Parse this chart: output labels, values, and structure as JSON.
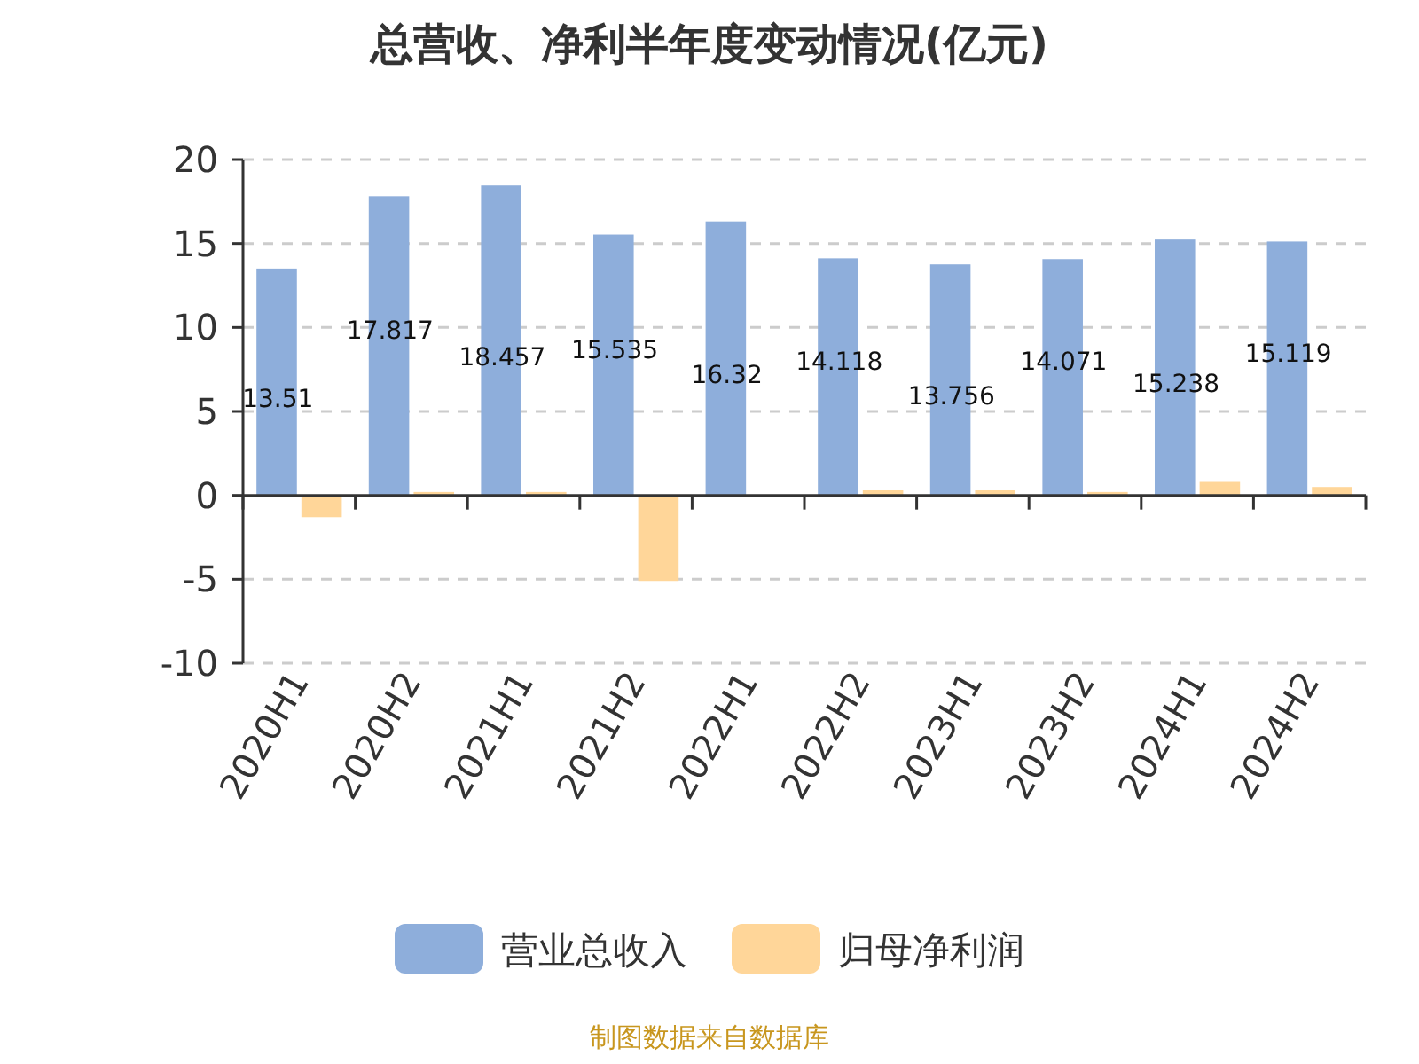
{
  "chart_data": {
    "type": "bar",
    "title": "总营收、净利半年度变动情况(亿元)",
    "categories": [
      "2020H1",
      "2020H2",
      "2021H1",
      "2021H2",
      "2022H1",
      "2022H2",
      "2023H1",
      "2023H2",
      "2024H1",
      "2024H2"
    ],
    "series": [
      {
        "name": "营业总收入",
        "color": "#8eaedb",
        "values": [
          13.51,
          17.817,
          18.457,
          15.535,
          16.32,
          14.118,
          13.756,
          14.071,
          15.238,
          15.119
        ],
        "value_labels": [
          "13.51",
          "17.817",
          "18.457",
          "15.535",
          "16.32",
          "14.118",
          "13.756",
          "14.071",
          "15.238",
          "15.119"
        ]
      },
      {
        "name": "归母净利润",
        "color": "#ffd699",
        "values": [
          -1.3,
          0.2,
          0.2,
          -5.1,
          null,
          0.3,
          0.3,
          0.2,
          0.8,
          0.5
        ]
      }
    ],
    "ylim": [
      -10,
      20
    ],
    "yticks": [
      -10,
      -5,
      0,
      5,
      10,
      15,
      20
    ],
    "grid": "y",
    "legend": "bottom",
    "annotations": [
      "制图数据来自数据库"
    ]
  }
}
